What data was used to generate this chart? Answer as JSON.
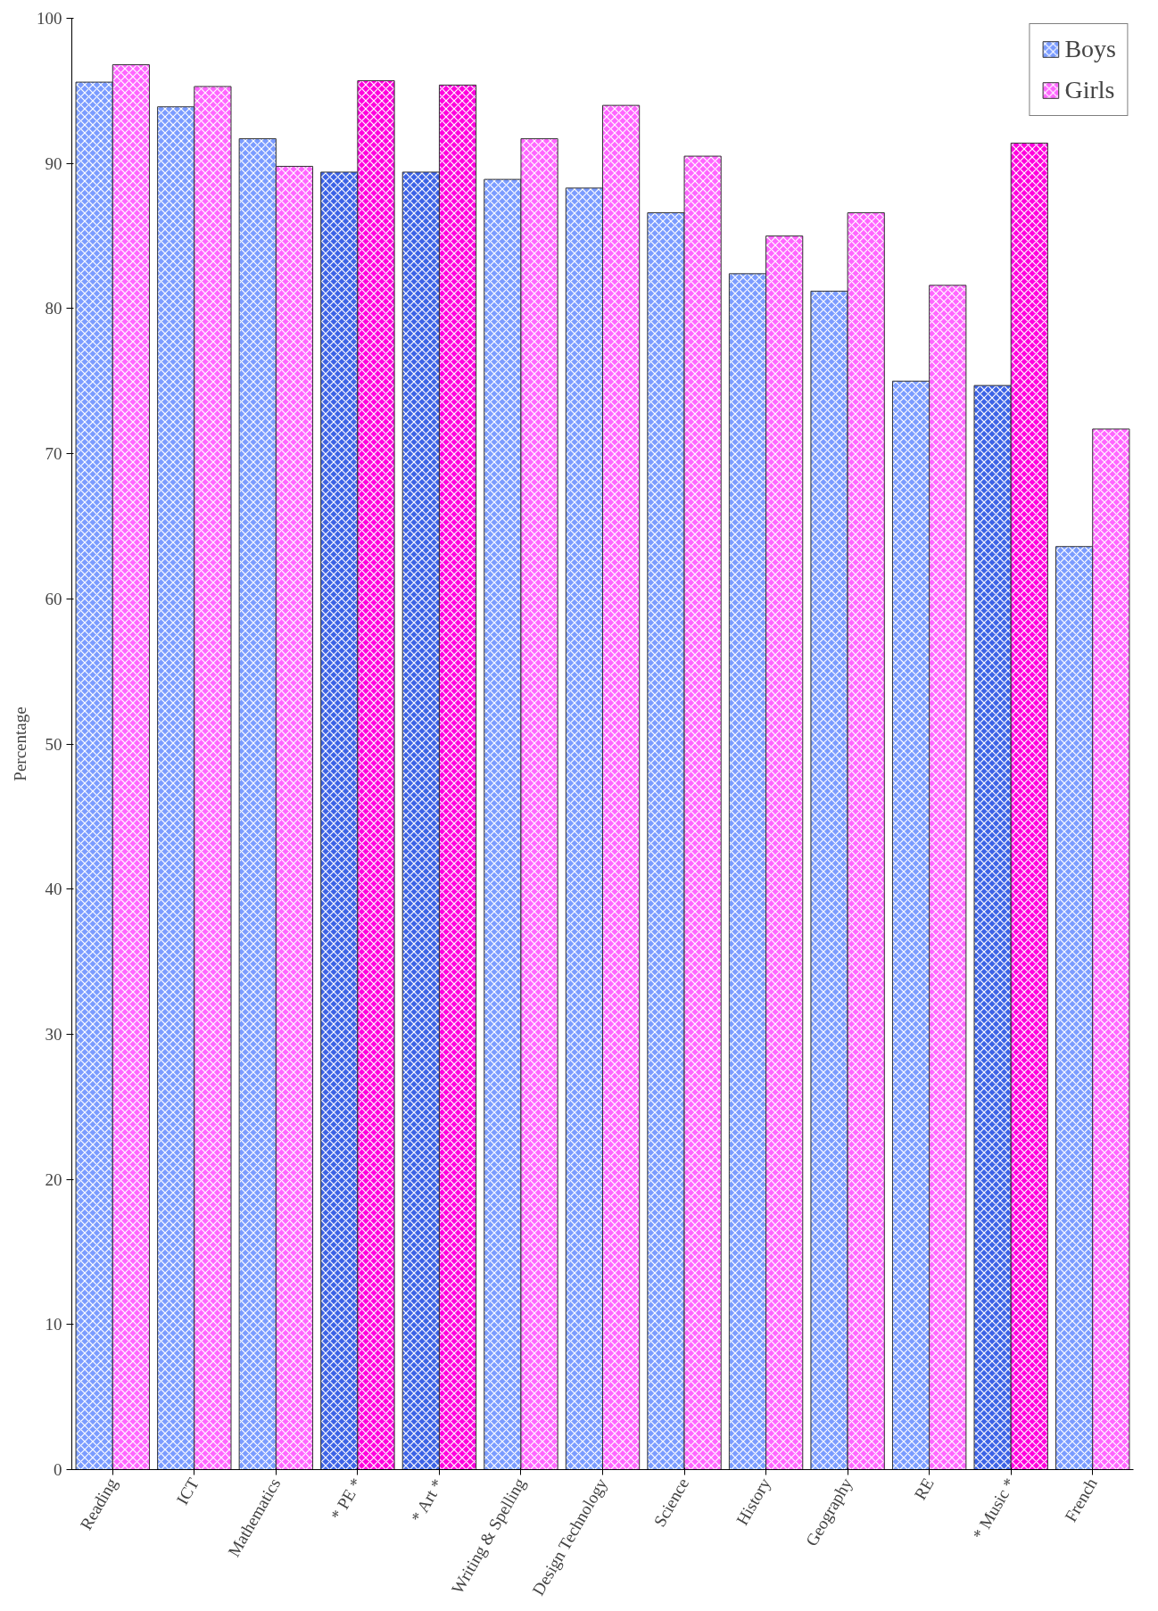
{
  "chart_data": {
    "type": "bar",
    "ylabel": "Percentage",
    "categories": [
      "Reading",
      "ICT",
      "Mathematics",
      "* PE *",
      "* Art *",
      "Writing & Spelling",
      "Design Technology",
      "Science",
      "History",
      "Geography",
      "RE",
      "* Music *",
      "French"
    ],
    "series": [
      {
        "name": "Boys",
        "colors": [
          "#7b9cff",
          "#7b9cff",
          "#7b9cff",
          "#3d63e6",
          "#3d63e6",
          "#7b9cff",
          "#7b9cff",
          "#7b9cff",
          "#7b9cff",
          "#7b9cff",
          "#7b9cff",
          "#3d63e6",
          "#7b9cff"
        ],
        "values": [
          95.6,
          93.9,
          91.7,
          89.4,
          89.4,
          88.9,
          88.3,
          86.6,
          82.4,
          81.2,
          75.0,
          74.7,
          63.6
        ]
      },
      {
        "name": "Girls",
        "colors": [
          "#ff66ff",
          "#ff66ff",
          "#ff66ff",
          "#ff00dd",
          "#ff00dd",
          "#ff66ff",
          "#ff66ff",
          "#ff66ff",
          "#ff66ff",
          "#ff66ff",
          "#ff66ff",
          "#ff00dd",
          "#ff66ff"
        ],
        "values": [
          96.8,
          95.3,
          89.8,
          95.7,
          95.4,
          91.7,
          94.0,
          90.5,
          85.0,
          86.6,
          81.6,
          91.4,
          71.7
        ]
      }
    ],
    "ylim": [
      0,
      100
    ],
    "yticks": [
      0,
      10,
      20,
      30,
      40,
      50,
      60,
      70,
      80,
      90,
      100
    ],
    "grid": false,
    "legend": "top right"
  }
}
